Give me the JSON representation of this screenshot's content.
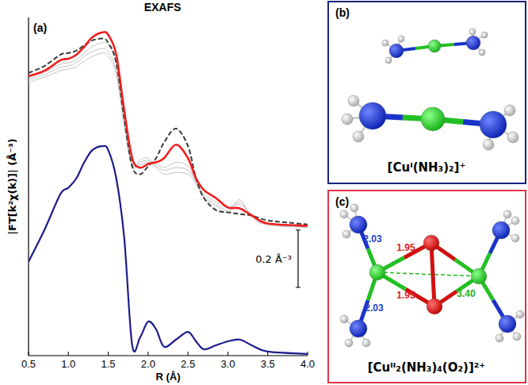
{
  "chart_data": {
    "type": "line",
    "title": "EXAFS",
    "x_label": "R (Å)",
    "y_label": "|FT[k²χ(k)]| (Å⁻³)",
    "annotations": [
      {
        "text": "(a)"
      }
    ],
    "scale_bar": {
      "value": 0.2,
      "label": "0.2 Å⁻³"
    },
    "xlim": [
      0.5,
      4.0
    ],
    "xticks": [
      0.5,
      1.0,
      1.5,
      2.0,
      2.5,
      3.0,
      3.5,
      4.0
    ],
    "ylim": [
      0,
      1.18
    ],
    "tick_labels": "x",
    "grid": false,
    "x": [
      0.5,
      0.7,
      0.9,
      1.0,
      1.1,
      1.2,
      1.3,
      1.43,
      1.5,
      1.6,
      1.7,
      1.8,
      1.9,
      2.0,
      2.1,
      2.2,
      2.35,
      2.5,
      2.6,
      2.7,
      2.85,
      3.0,
      3.15,
      3.3,
      3.5,
      4.0
    ],
    "series": [
      {
        "color": "#c4c4c4",
        "line_style": "solid",
        "values": [
          0.967,
          0.989,
          1.017,
          1.022,
          1.033,
          1.056,
          1.078,
          1.092,
          1.083,
          1.017,
          0.828,
          0.675,
          0.667,
          0.675,
          0.669,
          0.656,
          0.675,
          0.661,
          0.611,
          0.564,
          0.536,
          0.517,
          0.528,
          0.494,
          0.461,
          0.453
        ]
      },
      {
        "color": "#c4c4c4",
        "line_style": "solid",
        "values": [
          0.961,
          0.981,
          1.006,
          1.011,
          1.022,
          1.044,
          1.061,
          1.072,
          1.061,
          0.994,
          0.814,
          0.667,
          0.675,
          0.681,
          0.661,
          0.647,
          0.656,
          0.647,
          0.606,
          0.556,
          0.528,
          0.508,
          0.536,
          0.489,
          0.458,
          0.45
        ]
      },
      {
        "color": "#c4c4c4",
        "line_style": "solid",
        "values": [
          0.953,
          0.972,
          0.994,
          1.0,
          1.008,
          1.028,
          1.044,
          1.056,
          1.044,
          0.981,
          0.8,
          0.656,
          0.683,
          0.689,
          0.656,
          0.633,
          0.639,
          0.633,
          0.6,
          0.55,
          0.522,
          0.5,
          0.544,
          0.483,
          0.456,
          0.447
        ]
      },
      {
        "color": "#3a3a3a",
        "line_style": "dashed",
        "values": [
          0.986,
          1.011,
          1.05,
          1.056,
          1.064,
          1.083,
          1.1,
          1.106,
          1.092,
          1.022,
          0.828,
          0.661,
          0.633,
          0.661,
          0.689,
          0.744,
          0.792,
          0.731,
          0.619,
          0.55,
          0.508,
          0.5,
          0.494,
          0.489,
          0.472,
          0.458
        ]
      },
      {
        "color": "#1c1c8c",
        "line_style": "solid",
        "values": [
          0.328,
          0.439,
          0.564,
          0.586,
          0.619,
          0.675,
          0.717,
          0.731,
          0.717,
          0.619,
          0.411,
          0.036,
          0.064,
          0.119,
          0.092,
          0.031,
          0.056,
          0.083,
          0.05,
          0.022,
          0.036,
          0.05,
          0.056,
          0.036,
          0.014,
          0.006
        ]
      },
      {
        "color": "#f01e1e",
        "line_style": "solid",
        "values": [
          0.975,
          0.994,
          1.031,
          1.036,
          1.05,
          1.078,
          1.111,
          1.128,
          1.119,
          1.05,
          0.856,
          0.689,
          0.656,
          0.669,
          0.675,
          0.689,
          0.736,
          0.689,
          0.619,
          0.578,
          0.55,
          0.517,
          0.514,
          0.489,
          0.461,
          0.453
        ]
      }
    ]
  },
  "diagrams": [
    {
      "panel_label": "(b)",
      "caption": "[Cuᴵ(NH₃)₂]⁺"
    },
    {
      "panel_label": "(c)",
      "caption": "[Cuᴵᴵ₂(NH₃)₄(O₂)]²⁺",
      "bond_labels": [
        {
          "text": "2.03",
          "color": "#2444c8"
        },
        {
          "text": "1.95",
          "color": "#e0202a"
        },
        {
          "text": "2.03",
          "color": "#2444c8"
        },
        {
          "text": "1.95",
          "color": "#e0202a"
        },
        {
          "text": "3.40",
          "color": "#22b422"
        }
      ]
    }
  ]
}
